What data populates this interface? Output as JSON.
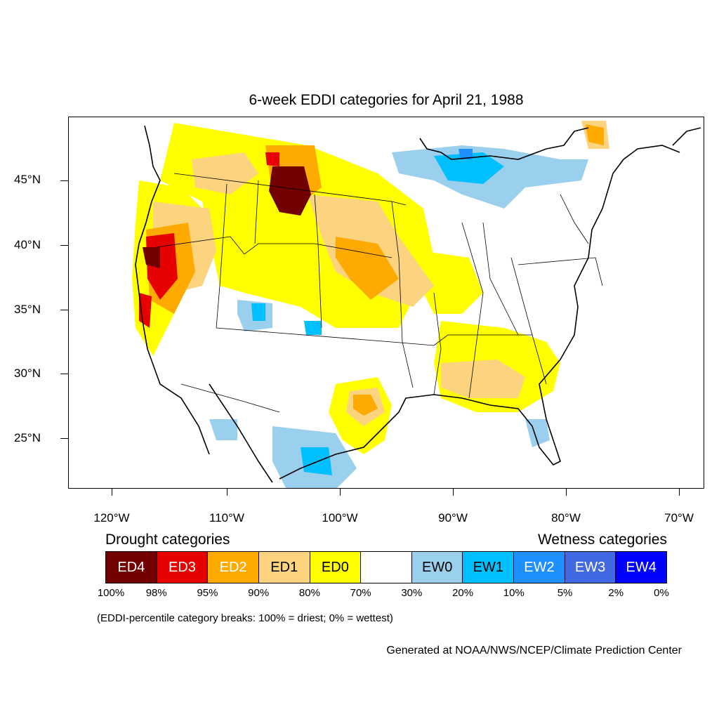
{
  "title": "6-week EDDI categories for April 21, 1988",
  "latitude_labels": [
    "45°N",
    "40°N",
    "35°N",
    "30°N",
    "25°N"
  ],
  "longitude_labels": [
    "120°W",
    "110°W",
    "100°W",
    "90°W",
    "80°W",
    "70°W"
  ],
  "drought_heading": "Drought categories",
  "wetness_heading": "Wetness categories",
  "legend": [
    {
      "label": "ED4",
      "color": "#730000",
      "text_color": "#ffffff"
    },
    {
      "label": "ED3",
      "color": "#e60000",
      "text_color": "#ffffff"
    },
    {
      "label": "ED2",
      "color": "#ffaa00",
      "text_color": "#ffffff"
    },
    {
      "label": "ED1",
      "color": "#fcd37f",
      "text_color": "#000000"
    },
    {
      "label": "ED0",
      "color": "#ffff00",
      "text_color": "#000000"
    },
    {
      "label": "",
      "color": "#ffffff",
      "text_color": "#000000"
    },
    {
      "label": "EW0",
      "color": "#9bcfee",
      "text_color": "#000000"
    },
    {
      "label": "EW1",
      "color": "#00bfff",
      "text_color": "#000000"
    },
    {
      "label": "EW2",
      "color": "#1e8fff",
      "text_color": "#ffffff"
    },
    {
      "label": "EW3",
      "color": "#4169e1",
      "text_color": "#ffffff"
    },
    {
      "label": "EW4",
      "color": "#0000ff",
      "text_color": "#ffffff"
    }
  ],
  "breaks": [
    "100%",
    "98%",
    "95%",
    "90%",
    "80%",
    "70%",
    "30%",
    "20%",
    "10%",
    "5%",
    "2%",
    "0%"
  ],
  "note": "(EDDI-percentile category breaks: 100% = driest; 0% = wettest)",
  "credit": "Generated at NOAA/NWS/NCEP/Climate Prediction Center"
}
